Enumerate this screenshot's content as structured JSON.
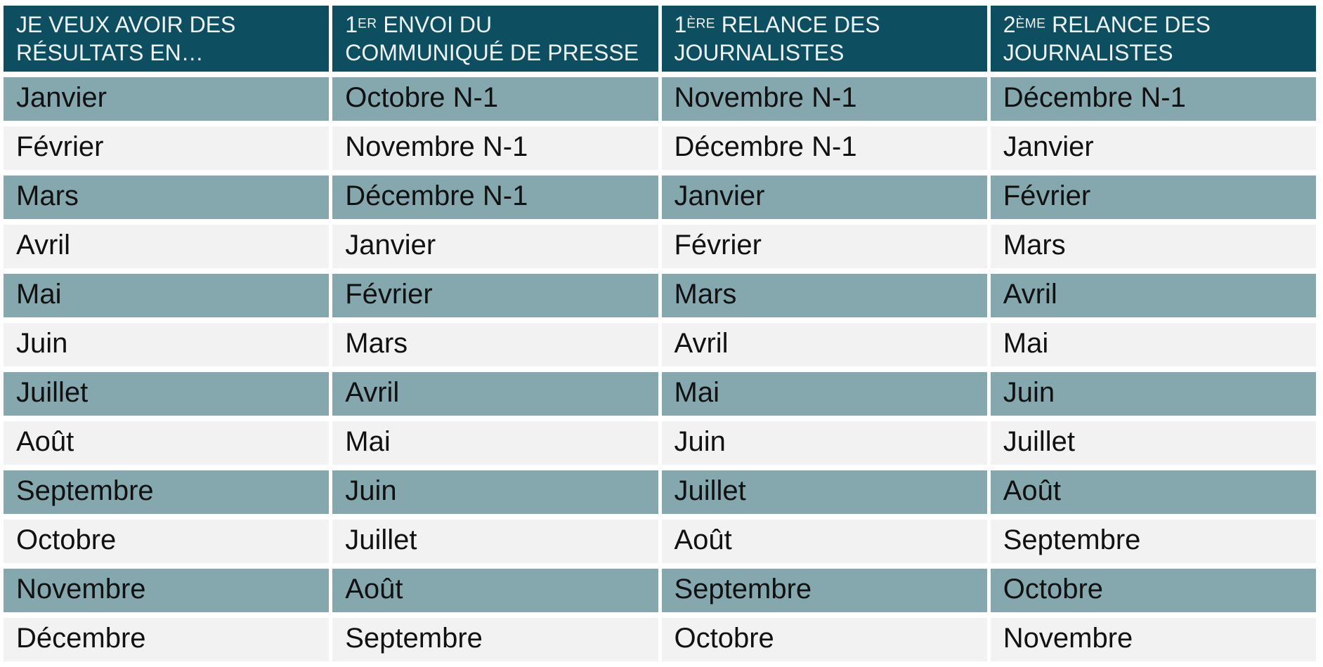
{
  "colors": {
    "page_bg": "#ffffff",
    "header_bg": "#0d4e60",
    "header_text": "#eef4f5",
    "row_odd_bg": "#85a7ae",
    "row_even_bg": "#f2f2f2",
    "cell_text": "#111111"
  },
  "table": {
    "headers": [
      {
        "num": "JE VEUX AVOIR DES RÉSULTATS EN…",
        "sup": "",
        "rest": ""
      },
      {
        "num": "1",
        "sup": "ER",
        "rest": " ENVOI DU COMMUNIQUÉ DE PRESSE"
      },
      {
        "num": "1",
        "sup": "ÈRE",
        "rest": " RELANCE DES JOURNALISTES"
      },
      {
        "num": "2",
        "sup": "ÈME",
        "rest": " RELANCE DES JOURNALISTES"
      }
    ],
    "rows": [
      {
        "month": "Janvier",
        "send": "Octobre N-1",
        "r1": "Novembre N-1",
        "r2": "Décembre N-1"
      },
      {
        "month": "Février",
        "send": "Novembre N-1",
        "r1": "Décembre N-1",
        "r2": "Janvier"
      },
      {
        "month": "Mars",
        "send": "Décembre N-1",
        "r1": "Janvier",
        "r2": "Février"
      },
      {
        "month": "Avril",
        "send": "Janvier",
        "r1": "Février",
        "r2": "Mars"
      },
      {
        "month": "Mai",
        "send": "Février",
        "r1": "Mars",
        "r2": "Avril"
      },
      {
        "month": "Juin",
        "send": "Mars",
        "r1": "Avril",
        "r2": "Mai"
      },
      {
        "month": "Juillet",
        "send": "Avril",
        "r1": "Mai",
        "r2": "Juin"
      },
      {
        "month": "Août",
        "send": "Mai",
        "r1": "Juin",
        "r2": "Juillet"
      },
      {
        "month": "Septembre",
        "send": "Juin",
        "r1": "Juillet",
        "r2": "Août"
      },
      {
        "month": "Octobre",
        "send": "Juillet",
        "r1": "Août",
        "r2": "Septembre"
      },
      {
        "month": "Novembre",
        "send": "Août",
        "r1": "Septembre",
        "r2": "Octobre"
      },
      {
        "month": "Décembre",
        "send": "Septembre",
        "r1": "Octobre",
        "r2": "Novembre"
      }
    ]
  }
}
